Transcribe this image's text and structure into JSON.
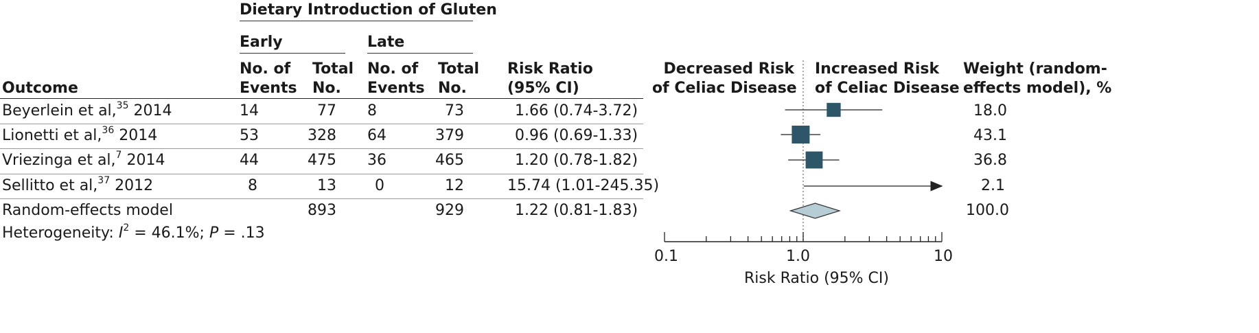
{
  "chart_data": {
    "type": "forest",
    "header": {
      "group_title": "Dietary Introduction of Gluten",
      "early": "Early",
      "late": "Late",
      "outcome": "Outcome",
      "events_l1": "No. of",
      "events_l2": "Events",
      "total_l1": "Total",
      "total_l2": "No.",
      "rr_l1": "Risk Ratio",
      "rr_l2": "(95% CI)",
      "left_dir_l1": "Decreased Risk",
      "left_dir_l2": "of Celiac Disease",
      "right_dir_l1": "Increased Risk",
      "right_dir_l2": "of Celiac Disease",
      "weight_l1": "Weight (random-",
      "weight_l2": "effects model), %"
    },
    "studies": [
      {
        "name": "Beyerlein et al,",
        "ref": "35",
        "year": "2014",
        "early_events": "14",
        "early_total": "77",
        "late_events": "8",
        "late_total": "73",
        "rr_text": "1.66 (0.74-3.72)",
        "rr": 1.66,
        "lo": 0.74,
        "hi": 3.72,
        "weight": "18.0",
        "weight_val": 18.0
      },
      {
        "name": "Lionetti et al,",
        "ref": "36",
        "year": "2014",
        "early_events": "53",
        "early_total": "328",
        "late_events": "64",
        "late_total": "379",
        "rr_text": "0.96 (0.69-1.33)",
        "rr": 0.96,
        "lo": 0.69,
        "hi": 1.33,
        "weight": "43.1",
        "weight_val": 43.1
      },
      {
        "name": "Vriezinga et al,",
        "ref": "7",
        "year": "2014",
        "early_events": "44",
        "early_total": "475",
        "late_events": "36",
        "late_total": "465",
        "rr_text": "1.20 (0.78-1.82)",
        "rr": 1.2,
        "lo": 0.78,
        "hi": 1.82,
        "weight": "36.8",
        "weight_val": 36.8
      },
      {
        "name": "Sellitto et al,",
        "ref": "37",
        "year": "2012",
        "early_events": "8",
        "early_total": "13",
        "late_events": "0",
        "late_total": "12",
        "rr_text": "15.74 (1.01-245.35)",
        "rr": 15.74,
        "lo": 1.01,
        "hi": 245.35,
        "weight": "2.1",
        "weight_val": 2.1
      }
    ],
    "pooled": {
      "name": "Random-effects model",
      "early_total": "893",
      "late_total": "929",
      "rr_text": "1.22 (0.81-1.83)",
      "rr": 1.22,
      "lo": 0.81,
      "hi": 1.83,
      "weight": "100.0"
    },
    "heterogeneity": {
      "prefix": "Heterogeneity: ",
      "i": "I",
      "sq": "2",
      "i2": " = 46.1%; ",
      "p": "P",
      "pval": " = .13"
    },
    "x_axis": {
      "label": "Risk Ratio (95% CI)",
      "scale": "log",
      "xlim": [
        0.1,
        10
      ],
      "ticks": [
        "0.1",
        "1.0",
        "10"
      ],
      "reference": 1.0
    },
    "colors": {
      "marker": "#2d5668",
      "diamond": "#b7cdd6",
      "line": "#444444"
    }
  }
}
